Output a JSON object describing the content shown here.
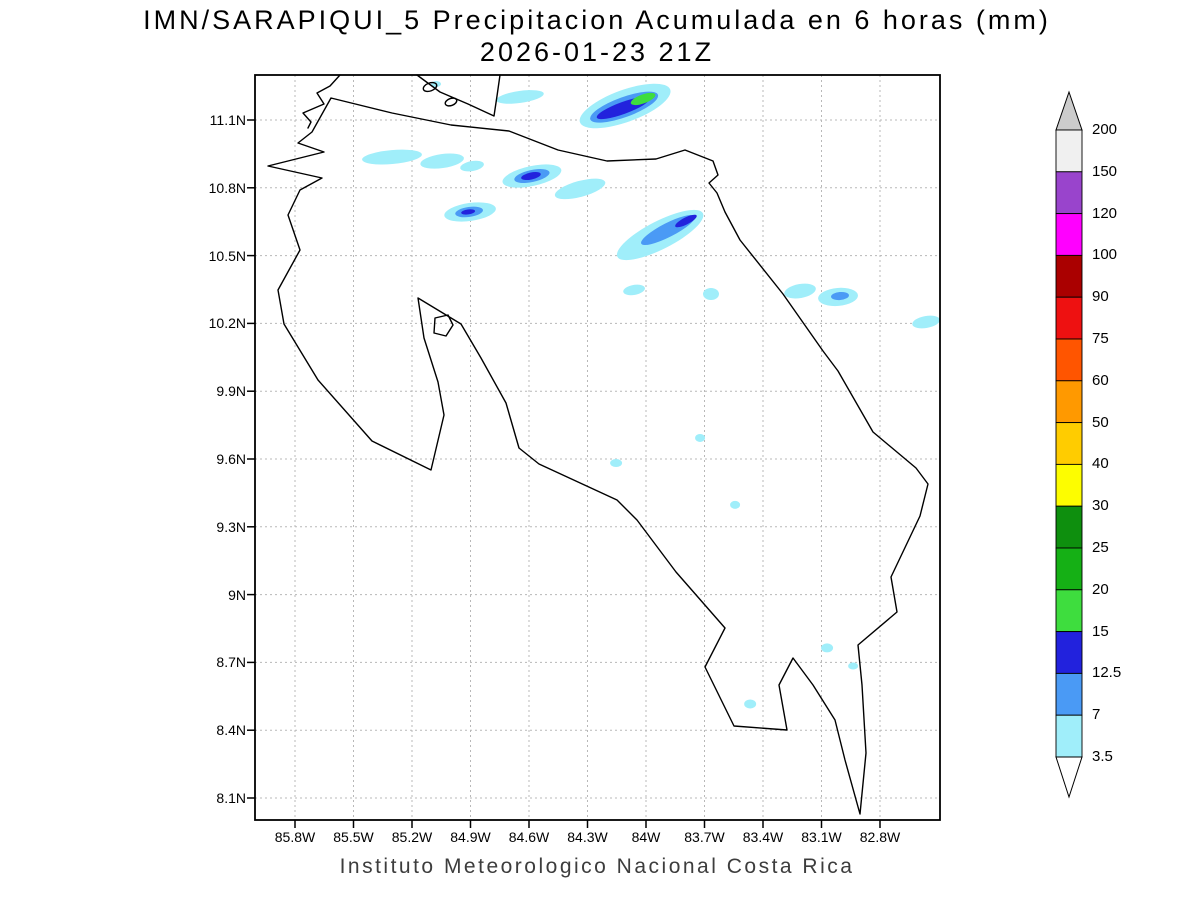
{
  "title": {
    "line1": "IMN/SARAPIQUI_5 Precipitacion Acumulada en 6 horas (mm)",
    "line2": "2026-01-23 21Z"
  },
  "footer": "Instituto Meteorologico Nacional Costa Rica",
  "axes": {
    "lat_ticks": [
      "11.1N",
      "10.8N",
      "10.5N",
      "10.2N",
      "9.9N",
      "9.6N",
      "9.3N",
      "9N",
      "8.7N",
      "8.4N",
      "8.1N"
    ],
    "lon_ticks": [
      "85.8W",
      "85.5W",
      "85.2W",
      "84.9W",
      "84.6W",
      "84.3W",
      "84W",
      "83.7W",
      "83.4W",
      "83.1W",
      "82.8W"
    ]
  },
  "colorbar": {
    "units": "mm",
    "levels_top_to_bottom": [
      "200",
      "150",
      "120",
      "100",
      "90",
      "75",
      "60",
      "50",
      "40",
      "30",
      "25",
      "20",
      "15",
      "12.5",
      "7",
      "3.5"
    ],
    "segment_colors_top_to_bottom": [
      "#f0f0f0",
      "#9944cc",
      "#ff00ff",
      "#aa0000",
      "#ee1111",
      "#ff5500",
      "#ff9900",
      "#ffcc00",
      "#fdfd00",
      "#0e8f0e",
      "#15b015",
      "#3edd3e",
      "#2222dd",
      "#4a9af5",
      "#a0eefa"
    ],
    "above_max_color": "#cccccc",
    "below_min_color": "#ffffff"
  },
  "chart_data": {
    "type": "heatmap",
    "title": "IMN/SARAPIQUI_5 Precipitacion Acumulada en 6 horas (mm)",
    "subtitle": "2026-01-23 21Z",
    "region": "Costa Rica",
    "lat_range": [
      "8.1N",
      "11.1N"
    ],
    "lon_range": [
      "85.8W",
      "82.8W"
    ],
    "units": "mm",
    "contour_levels_mm": [
      3.5,
      7,
      12.5,
      15,
      20,
      25,
      30,
      40,
      50,
      60,
      75,
      90,
      100,
      120,
      150,
      200
    ],
    "features": [
      {
        "lon": 85.075,
        "lat": 11.26,
        "rx": 5,
        "ry": 3,
        "rot": 0,
        "mm": 3.5
      },
      {
        "lon": 84.646,
        "lat": 11.203,
        "rx": 24,
        "ry": 6,
        "rot": -8,
        "mm": 3.5
      },
      {
        "lon": 84.109,
        "lat": 11.163,
        "rx": 48,
        "ry": 16,
        "rot": -20,
        "mm": 3.5
      },
      {
        "lon": 84.114,
        "lat": 11.158,
        "rx": 36,
        "ry": 10,
        "rot": -20,
        "mm": 7
      },
      {
        "lon": 84.119,
        "lat": 11.154,
        "rx": 28,
        "ry": 6,
        "rot": -20,
        "mm": 12.5
      },
      {
        "lon": 84.017,
        "lat": 11.194,
        "rx": 13,
        "ry": 4.5,
        "rot": -20,
        "mm": 15
      },
      {
        "lon": 85.3,
        "lat": 10.937,
        "rx": 30,
        "ry": 7,
        "rot": -5,
        "mm": 3.5
      },
      {
        "lon": 85.044,
        "lat": 10.919,
        "rx": 22,
        "ry": 7,
        "rot": -8,
        "mm": 3.5
      },
      {
        "lon": 84.891,
        "lat": 10.897,
        "rx": 12,
        "ry": 5,
        "rot": -10,
        "mm": 3.5
      },
      {
        "lon": 84.585,
        "lat": 10.853,
        "rx": 30,
        "ry": 10,
        "rot": -12,
        "mm": 3.5
      },
      {
        "lon": 84.585,
        "lat": 10.853,
        "rx": 18,
        "ry": 6,
        "rot": -12,
        "mm": 7
      },
      {
        "lon": 84.59,
        "lat": 10.853,
        "rx": 10,
        "ry": 3.5,
        "rot": -12,
        "mm": 12.5
      },
      {
        "lon": 84.339,
        "lat": 10.796,
        "rx": 26,
        "ry": 8,
        "rot": -15,
        "mm": 3.5
      },
      {
        "lon": 84.901,
        "lat": 10.694,
        "rx": 26,
        "ry": 9,
        "rot": -8,
        "mm": 3.5
      },
      {
        "lon": 84.906,
        "lat": 10.694,
        "rx": 14,
        "ry": 5,
        "rot": -8,
        "mm": 7
      },
      {
        "lon": 84.911,
        "lat": 10.694,
        "rx": 7,
        "ry": 2.5,
        "rot": -8,
        "mm": 12.5
      },
      {
        "lon": 83.93,
        "lat": 10.592,
        "rx": 48,
        "ry": 14,
        "rot": -27,
        "mm": 3.5
      },
      {
        "lon": 83.89,
        "lat": 10.614,
        "rx": 30,
        "ry": 7,
        "rot": -27,
        "mm": 7
      },
      {
        "lon": 83.798,
        "lat": 10.654,
        "rx": 12,
        "ry": 3.5,
        "rot": -27,
        "mm": 12.5
      },
      {
        "lon": 84.063,
        "lat": 10.349,
        "rx": 11,
        "ry": 5,
        "rot": -10,
        "mm": 3.5
      },
      {
        "lon": 83.67,
        "lat": 10.331,
        "rx": 8,
        "ry": 6,
        "rot": 0,
        "mm": 3.5
      },
      {
        "lon": 83.215,
        "lat": 10.344,
        "rx": 16,
        "ry": 7,
        "rot": -10,
        "mm": 3.5
      },
      {
        "lon": 83.021,
        "lat": 10.318,
        "rx": 20,
        "ry": 9,
        "rot": -5,
        "mm": 3.5
      },
      {
        "lon": 83.011,
        "lat": 10.322,
        "rx": 9,
        "ry": 4,
        "rot": -5,
        "mm": 7
      },
      {
        "lon": 82.571,
        "lat": 10.207,
        "rx": 14,
        "ry": 6,
        "rot": -10,
        "mm": 3.5
      },
      {
        "lon": 83.726,
        "lat": 9.694,
        "rx": 5,
        "ry": 4,
        "rot": 0,
        "mm": 3.5
      },
      {
        "lon": 84.155,
        "lat": 9.583,
        "rx": 6,
        "ry": 4,
        "rot": 0,
        "mm": 3.5
      },
      {
        "lon": 83.547,
        "lat": 9.398,
        "rx": 5,
        "ry": 4,
        "rot": 0,
        "mm": 3.5
      },
      {
        "lon": 83.077,
        "lat": 8.765,
        "rx": 6,
        "ry": 4.5,
        "rot": 0,
        "mm": 3.5
      },
      {
        "lon": 82.944,
        "lat": 8.685,
        "rx": 5,
        "ry": 3.5,
        "rot": 0,
        "mm": 3.5
      },
      {
        "lon": 83.47,
        "lat": 8.517,
        "rx": 6,
        "ry": 4.5,
        "rot": 0,
        "mm": 3.5
      }
    ]
  }
}
